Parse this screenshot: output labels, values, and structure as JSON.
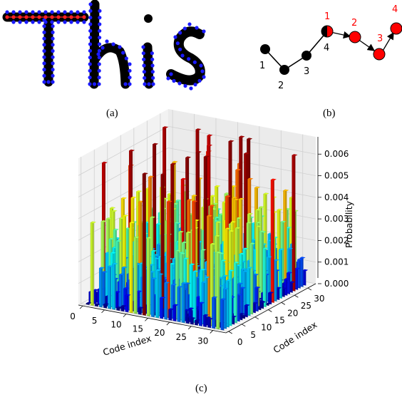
{
  "panel_a": {
    "word": "This",
    "caption": "(a)",
    "colors": {
      "stroke": "#000000",
      "points": "#1a1aff",
      "start_points": "#ff2020"
    }
  },
  "panel_b": {
    "caption": "(b)",
    "black_labels": [
      "1",
      "2",
      "3",
      "4"
    ],
    "red_labels": [
      "1",
      "2",
      "3",
      "4"
    ],
    "colors": {
      "black_node": "#000000",
      "red_node": "#ff0000",
      "red_text": "#ff0000"
    }
  },
  "panel_c": {
    "caption": "(c)",
    "chart_data": {
      "type": "bar3d",
      "xlabel": "Code index",
      "ylabel": "Code index",
      "zlabel": "Probability",
      "x_ticks": [
        "0",
        "5",
        "10",
        "15",
        "20",
        "25",
        "30"
      ],
      "y_ticks": [
        "0",
        "5",
        "10",
        "15",
        "20",
        "25",
        "30"
      ],
      "z_ticks": [
        "0.000",
        "0.001",
        "0.002",
        "0.003",
        "0.004",
        "0.005",
        "0.006"
      ],
      "zlim": [
        0,
        0.0068
      ],
      "colormap": "jet"
    }
  }
}
